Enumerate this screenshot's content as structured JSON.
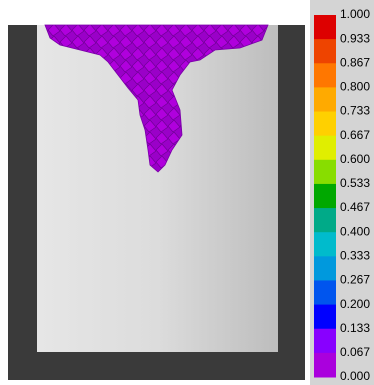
{
  "colorbar": {
    "labels": [
      "1.000",
      "0.933",
      "0.867",
      "0.800",
      "0.733",
      "0.667",
      "0.600",
      "0.533",
      "0.467",
      "0.400",
      "0.333",
      "0.267",
      "0.200",
      "0.133",
      "0.067",
      "0.000"
    ],
    "colors": [
      "#dd0000",
      "#ee4400",
      "#ff7700",
      "#ffaa00",
      "#ffd000",
      "#e0ee00",
      "#88dd00",
      "#00a800",
      "#00aa88",
      "#00bbcc",
      "#0099dd",
      "#0055ee",
      "#0000ff",
      "#8800ff",
      "#aa00dd"
    ]
  }
}
